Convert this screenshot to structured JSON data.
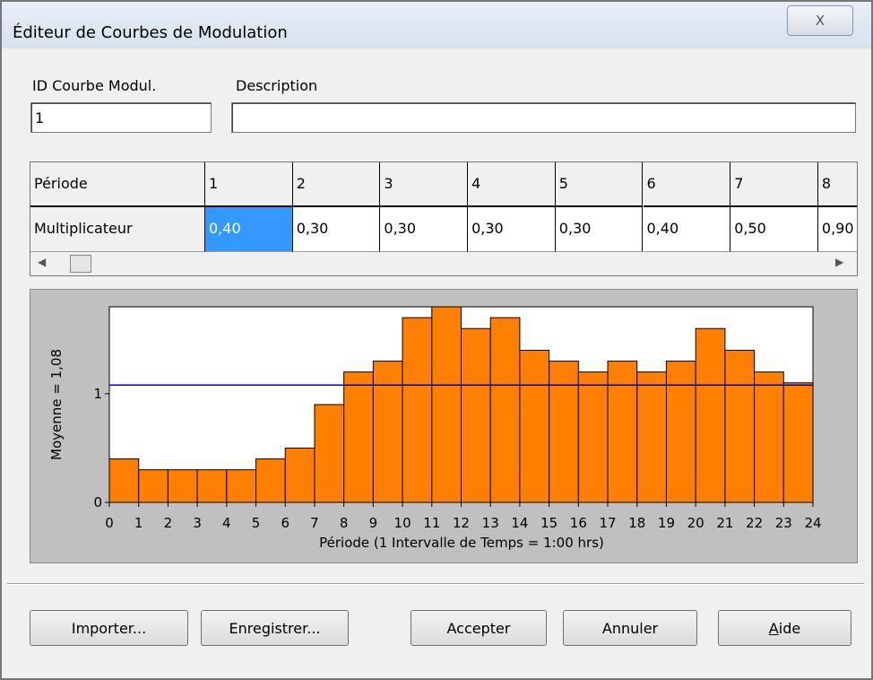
{
  "window": {
    "title": "Éditeur de Courbes de Modulation",
    "close": "X"
  },
  "fields": {
    "id_label": "ID Courbe Modul.",
    "id_value": "1",
    "description_label": "Description",
    "description_value": ""
  },
  "table": {
    "row_headers": [
      "Période",
      "Multiplicateur"
    ],
    "periods": [
      "1",
      "2",
      "3",
      "4",
      "5",
      "6",
      "7",
      "8"
    ],
    "multipliers": [
      "0,40",
      "0,30",
      "0,30",
      "0,30",
      "0,30",
      "0,40",
      "0,50",
      "0,90"
    ]
  },
  "chart_data": {
    "type": "histogram",
    "bins": [
      0,
      1,
      2,
      3,
      4,
      5,
      6,
      7,
      8,
      9,
      10,
      11,
      12,
      13,
      14,
      15,
      16,
      17,
      18,
      19,
      20,
      21,
      22,
      23,
      24
    ],
    "values": [
      0.4,
      0.3,
      0.3,
      0.3,
      0.3,
      0.4,
      0.5,
      0.9,
      1.2,
      1.3,
      1.7,
      1.8,
      1.6,
      1.7,
      1.4,
      1.3,
      1.2,
      1.3,
      1.2,
      1.3,
      1.6,
      1.4,
      1.2,
      1.1
    ],
    "color": "#ff8000",
    "mean": 1.08,
    "mean_color": "#0000c0",
    "xlabel": "Période (1 Intervalle de Temps = 1:00 hrs)",
    "ylabel": "Moyenne = 1,08",
    "xlim": [
      0,
      24
    ],
    "ylim": [
      0,
      1.8
    ],
    "xticks": [
      0,
      1,
      2,
      3,
      4,
      5,
      6,
      7,
      8,
      9,
      10,
      11,
      12,
      13,
      14,
      15,
      16,
      17,
      18,
      19,
      20,
      21,
      22,
      23,
      24
    ],
    "yticks": [
      0,
      1
    ]
  },
  "buttons": [
    "Importer...",
    "Enregistrer...",
    "Accepter",
    "Annuler",
    "Aide"
  ]
}
